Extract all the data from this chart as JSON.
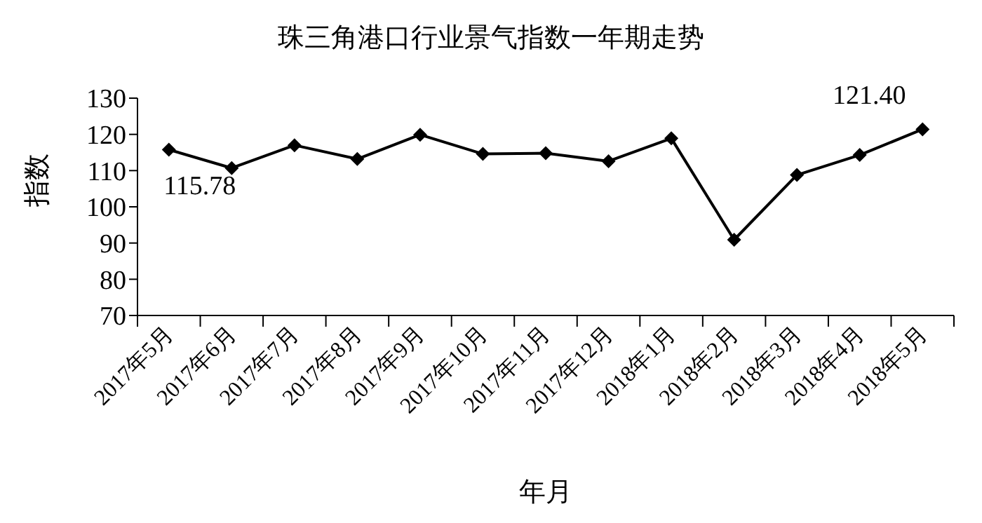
{
  "chart_data": {
    "type": "line",
    "title": "珠三角港口行业景气指数一年期走势",
    "xlabel": "年月",
    "ylabel": "指数",
    "categories": [
      "2017年5月",
      "2017年6月",
      "2017年7月",
      "2017年8月",
      "2017年9月",
      "2017年10月",
      "2017年11月",
      "2017年12月",
      "2018年1月",
      "2018年2月",
      "2018年3月",
      "2018年4月",
      "2018年5月"
    ],
    "series": [
      {
        "color": "#000000",
        "values": [
          115.78,
          110.7,
          117,
          113.2,
          119.9,
          114.6,
          114.8,
          112.6,
          118.9,
          90.9,
          108.8,
          114.3,
          121.4
        ],
        "value_labels": [
          "115.78",
          null,
          null,
          null,
          null,
          null,
          null,
          null,
          null,
          null,
          null,
          null,
          "121.40"
        ]
      }
    ],
    "ylim": [
      70,
      130
    ],
    "yticks": [
      70,
      80,
      90,
      100,
      110,
      120,
      130
    ],
    "marker": "diamond",
    "line_style": "solid"
  }
}
